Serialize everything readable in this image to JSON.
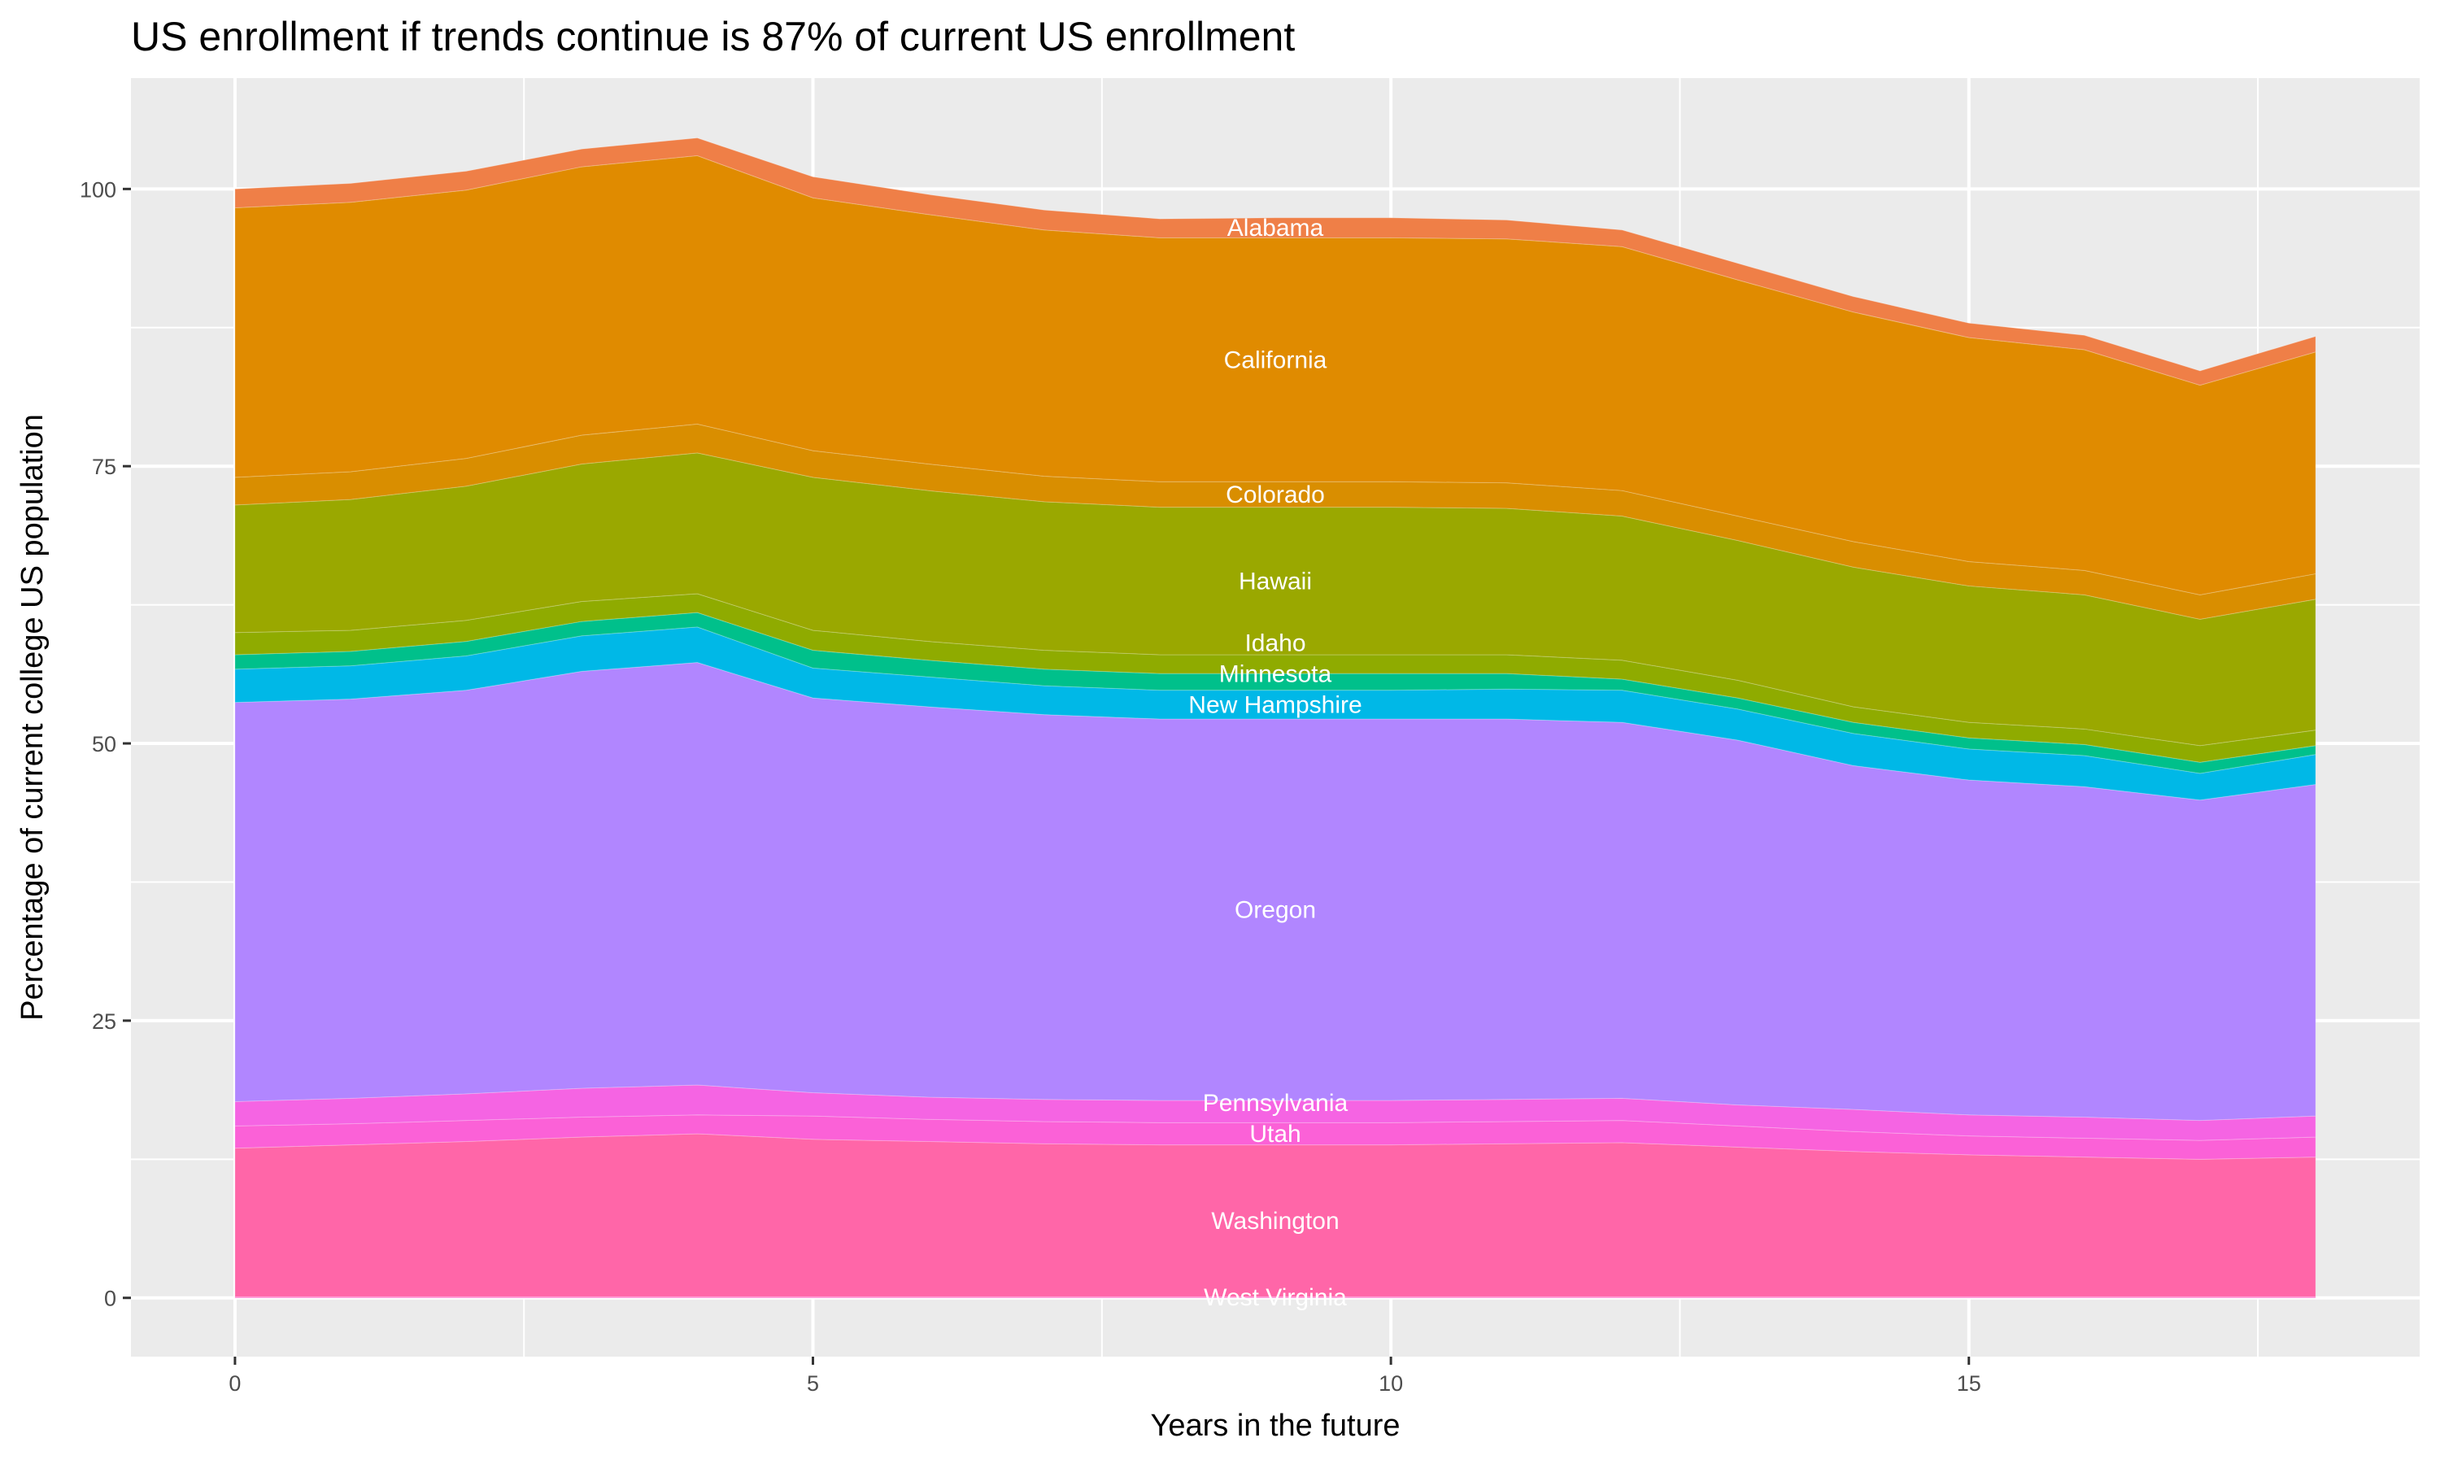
{
  "chart_data": {
    "type": "area",
    "stacked": true,
    "title": "US enrollment if trends continue is 87% of current US enrollment",
    "xlabel": "Years in the future",
    "ylabel": "Percentage of current college US population",
    "xlim": [
      -0.9,
      18.9
    ],
    "ylim": [
      -5.3,
      110
    ],
    "x_ticks": [
      0,
      5,
      10,
      15
    ],
    "y_ticks": [
      0,
      25,
      50,
      75,
      100
    ],
    "grid": true,
    "legend": "none (direct labels)",
    "x": [
      0,
      1,
      2,
      3,
      4,
      5,
      6,
      7,
      8,
      9,
      10,
      11,
      12,
      13,
      14,
      15,
      16,
      17,
      18
    ],
    "series": [
      {
        "name": "West Virginia",
        "color": "#ff61c9",
        "values": [
          0.1,
          0.1,
          0.1,
          0.1,
          0.1,
          0.1,
          0.1,
          0.1,
          0.1,
          0.1,
          0.1,
          0.1,
          0.1,
          0.1,
          0.1,
          0.1,
          0.1,
          0.1,
          0.1
        ]
      },
      {
        "name": "Washington",
        "color": "#ff66a8",
        "values": [
          13.4,
          13.7,
          14.0,
          14.4,
          14.7,
          14.2,
          14.0,
          13.8,
          13.7,
          13.7,
          13.7,
          13.8,
          13.9,
          13.5,
          13.1,
          12.8,
          12.6,
          12.4,
          12.6
        ]
      },
      {
        "name": "Utah",
        "color": "#fb61d7",
        "values": [
          2.0,
          1.9,
          1.9,
          1.8,
          1.7,
          2.1,
          2.0,
          2.0,
          2.0,
          2.0,
          2.0,
          2.0,
          2.0,
          1.9,
          1.8,
          1.7,
          1.7,
          1.7,
          1.8
        ]
      },
      {
        "name": "Pennsylvania",
        "color": "#f564e3",
        "values": [
          2.2,
          2.3,
          2.4,
          2.6,
          2.7,
          2.1,
          2.0,
          2.0,
          2.0,
          2.0,
          2.0,
          2.0,
          2.0,
          1.9,
          2.0,
          1.9,
          1.9,
          1.8,
          1.9
        ]
      },
      {
        "name": "Oregon",
        "color": "#b186ff",
        "values": [
          36.0,
          36.0,
          36.4,
          37.6,
          38.1,
          35.6,
          35.2,
          34.7,
          34.4,
          34.4,
          34.4,
          34.3,
          33.9,
          32.9,
          31.0,
          30.2,
          29.8,
          28.9,
          29.9
        ]
      },
      {
        "name": "New Hampshire",
        "color": "#00b8e7",
        "values": [
          3.0,
          3.0,
          3.1,
          3.2,
          3.2,
          2.7,
          2.7,
          2.6,
          2.6,
          2.6,
          2.6,
          2.7,
          2.9,
          2.8,
          2.9,
          2.8,
          2.8,
          2.4,
          2.7
        ]
      },
      {
        "name": "Minnesota",
        "color": "#00c08b",
        "values": [
          1.3,
          1.3,
          1.3,
          1.3,
          1.3,
          1.6,
          1.5,
          1.5,
          1.5,
          1.5,
          1.5,
          1.4,
          1.0,
          1.0,
          1.0,
          1.0,
          1.0,
          1.0,
          0.8
        ]
      },
      {
        "name": "Idaho",
        "color": "#8fab00",
        "values": [
          2.0,
          1.9,
          1.9,
          1.8,
          1.7,
          1.8,
          1.7,
          1.7,
          1.7,
          1.7,
          1.7,
          1.7,
          1.7,
          1.6,
          1.4,
          1.4,
          1.4,
          1.5,
          1.4
        ]
      },
      {
        "name": "Hawaii",
        "color": "#9aa800",
        "values": [
          11.5,
          11.8,
          12.1,
          12.4,
          12.7,
          13.8,
          13.6,
          13.4,
          13.3,
          13.3,
          13.3,
          13.2,
          13.0,
          12.6,
          12.6,
          12.3,
          12.1,
          11.4,
          11.8
        ]
      },
      {
        "name": "Colorado",
        "color": "#d98e00",
        "values": [
          2.5,
          2.5,
          2.5,
          2.6,
          2.6,
          2.4,
          2.4,
          2.3,
          2.3,
          2.3,
          2.3,
          2.3,
          2.3,
          2.2,
          2.3,
          2.2,
          2.2,
          2.2,
          2.3
        ]
      },
      {
        "name": "California",
        "color": "#e08b00",
        "values": [
          24.3,
          24.3,
          24.2,
          24.2,
          24.2,
          22.8,
          22.5,
          22.2,
          22.0,
          22.0,
          22.0,
          22.0,
          22.0,
          21.3,
          20.7,
          20.2,
          19.9,
          18.9,
          20.0
        ]
      },
      {
        "name": "Alabama",
        "color": "#ef7f47",
        "values": [
          1.7,
          1.7,
          1.7,
          1.6,
          1.6,
          1.9,
          1.8,
          1.8,
          1.7,
          1.8,
          1.8,
          1.7,
          1.5,
          1.5,
          1.4,
          1.3,
          1.3,
          1.3,
          1.4
        ]
      }
    ],
    "label_x": 9
  }
}
